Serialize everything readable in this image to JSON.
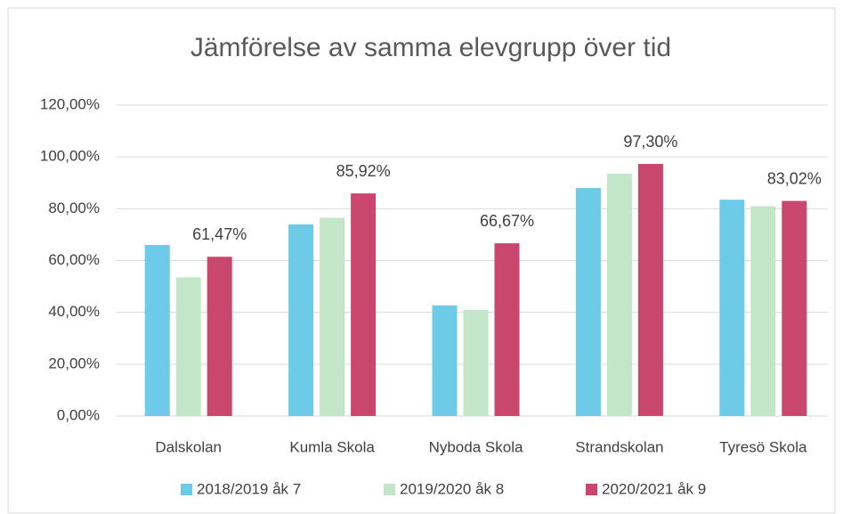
{
  "chart_data": {
    "type": "bar",
    "title": "Jämförelse av samma elevgrupp över tid",
    "categories": [
      "Dalskolan",
      "Kumla Skola",
      "Nyboda Skola",
      "Strandskolan",
      "Tyresö Skola"
    ],
    "series": [
      {
        "name": "2018/2019 åk 7",
        "color": "#6dcbe8",
        "values": [
          66,
          74,
          42.7,
          88,
          83.5
        ]
      },
      {
        "name": "2019/2020 åk 8",
        "color": "#c3e6c8",
        "values": [
          53.5,
          76.5,
          41,
          93.5,
          81
        ]
      },
      {
        "name": "2020/2021 åk 9",
        "color": "#c9476c",
        "values": [
          61.47,
          85.92,
          66.67,
          97.3,
          83.02
        ],
        "value_labels": [
          "61,47%",
          "85,92%",
          "66,67%",
          "97,30%",
          "83,02%"
        ]
      }
    ],
    "ylim": [
      0,
      120
    ],
    "yticks": [
      {
        "value": 0,
        "label": "0,00%"
      },
      {
        "value": 20,
        "label": "20,00%"
      },
      {
        "value": 40,
        "label": "40,00%"
      },
      {
        "value": 60,
        "label": "60,00%"
      },
      {
        "value": 80,
        "label": "80,00%"
      },
      {
        "value": 100,
        "label": "100,00%"
      },
      {
        "value": 120,
        "label": "120,00%"
      }
    ],
    "grid": true,
    "legend": "bottom"
  }
}
